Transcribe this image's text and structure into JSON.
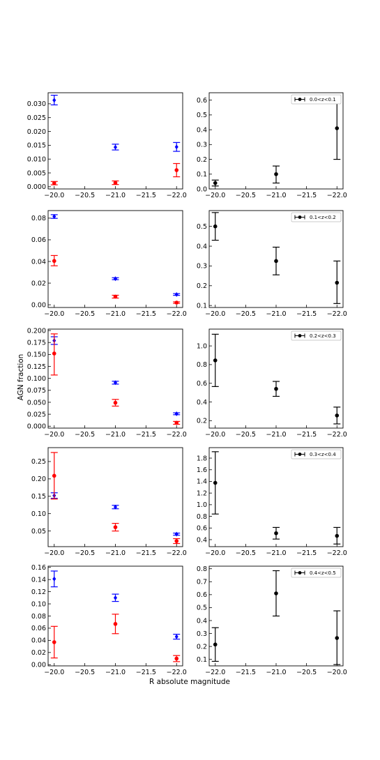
{
  "figure": {
    "shared_xlabel": "R absolute magnitude",
    "shared_ylabel": "AGN fraction"
  },
  "colors": {
    "blue": "#0000ff",
    "red": "#ff0000",
    "black": "#000000"
  },
  "chart_data": [
    {
      "id": "left-1",
      "type": "scatter",
      "xlim": [
        -19.9,
        -22.1
      ],
      "ylim": [
        -0.0008,
        0.034
      ],
      "xticks": [
        -20.0,
        -20.5,
        -21.0,
        -21.5,
        -22.0
      ],
      "xtick_labels": [
        "−20.0",
        "−20.5",
        "−21.0",
        "−21.5",
        "−22.0"
      ],
      "yticks": [
        0.0,
        0.005,
        0.01,
        0.015,
        0.02,
        0.025,
        0.03
      ],
      "ytick_labels": [
        "0.000",
        "0.005",
        "0.010",
        "0.015",
        "0.020",
        "0.025",
        "0.030"
      ],
      "series": [
        {
          "color": "blue",
          "marker": "diamond",
          "points": [
            {
              "x": -20.0,
              "y": 0.0313,
              "lo": 0.0296,
              "hi": 0.0331
            },
            {
              "x": -21.0,
              "y": 0.0143,
              "lo": 0.0133,
              "hi": 0.0154
            },
            {
              "x": -22.0,
              "y": 0.0144,
              "lo": 0.0128,
              "hi": 0.016
            }
          ]
        },
        {
          "color": "red",
          "marker": "circle",
          "points": [
            {
              "x": -20.0,
              "y": 0.0013,
              "lo": 0.0007,
              "hi": 0.0019
            },
            {
              "x": -21.0,
              "y": 0.0014,
              "lo": 0.0008,
              "hi": 0.0021
            },
            {
              "x": -22.0,
              "y": 0.006,
              "lo": 0.0036,
              "hi": 0.0084
            }
          ]
        }
      ]
    },
    {
      "id": "right-1",
      "type": "scatter",
      "xlim": [
        -19.9,
        -22.1
      ],
      "ylim": [
        0.0,
        0.65
      ],
      "xticks": [
        -20.0,
        -20.5,
        -21.0,
        -21.5,
        -22.0
      ],
      "xtick_labels": [
        "−20.0",
        "−20.5",
        "−21.0",
        "−21.5",
        "−22.0"
      ],
      "yticks": [
        0.0,
        0.1,
        0.2,
        0.3,
        0.4,
        0.5,
        0.6
      ],
      "ytick_labels": [
        "0.0",
        "0.1",
        "0.2",
        "0.3",
        "0.4",
        "0.5",
        "0.6"
      ],
      "legend": "0.0<z<0.1",
      "series": [
        {
          "color": "black",
          "marker": "circle",
          "points": [
            {
              "x": -20.0,
              "y": 0.04,
              "lo": 0.02,
              "hi": 0.06
            },
            {
              "x": -21.0,
              "y": 0.1,
              "lo": 0.04,
              "hi": 0.155
            },
            {
              "x": -22.0,
              "y": 0.41,
              "lo": 0.2,
              "hi": 0.62
            }
          ]
        }
      ]
    },
    {
      "id": "left-2",
      "type": "scatter",
      "xlim": [
        -19.9,
        -22.1
      ],
      "ylim": [
        -0.0025,
        0.087
      ],
      "xticks": [
        -20.0,
        -20.5,
        -21.0,
        -21.5,
        -22.0
      ],
      "xtick_labels": [
        "−20.0",
        "−20.5",
        "−21.0",
        "−21.5",
        "−22.0"
      ],
      "yticks": [
        0.0,
        0.02,
        0.04,
        0.06,
        0.08
      ],
      "ytick_labels": [
        "0.00",
        "0.02",
        "0.04",
        "0.06",
        "0.08"
      ],
      "series": [
        {
          "color": "blue",
          "marker": "diamond",
          "points": [
            {
              "x": -20.0,
              "y": 0.0815,
              "lo": 0.0798,
              "hi": 0.0832
            },
            {
              "x": -21.0,
              "y": 0.0241,
              "lo": 0.0232,
              "hi": 0.025
            },
            {
              "x": -22.0,
              "y": 0.0095,
              "lo": 0.0087,
              "hi": 0.0103
            }
          ]
        },
        {
          "color": "red",
          "marker": "circle",
          "points": [
            {
              "x": -20.0,
              "y": 0.0405,
              "lo": 0.036,
              "hi": 0.0455
            },
            {
              "x": -21.0,
              "y": 0.0075,
              "lo": 0.0062,
              "hi": 0.0088
            },
            {
              "x": -22.0,
              "y": 0.002,
              "lo": 0.0013,
              "hi": 0.0027
            }
          ]
        }
      ]
    },
    {
      "id": "right-2",
      "type": "scatter",
      "xlim": [
        -19.9,
        -22.1
      ],
      "ylim": [
        0.09,
        0.58
      ],
      "xticks": [
        -20.0,
        -20.5,
        -21.0,
        -21.5,
        -22.0
      ],
      "xtick_labels": [
        "−20.0",
        "−20.5",
        "−21.0",
        "−21.5",
        "−22.0"
      ],
      "yticks": [
        0.1,
        0.2,
        0.3,
        0.4,
        0.5
      ],
      "ytick_labels": [
        "0.1",
        "0.2",
        "0.3",
        "0.4",
        "0.5"
      ],
      "legend": "0.1<z<0.2",
      "series": [
        {
          "color": "black",
          "marker": "circle",
          "points": [
            {
              "x": -20.0,
              "y": 0.5,
              "lo": 0.43,
              "hi": 0.57
            },
            {
              "x": -21.0,
              "y": 0.325,
              "lo": 0.255,
              "hi": 0.395
            },
            {
              "x": -22.0,
              "y": 0.215,
              "lo": 0.11,
              "hi": 0.325
            }
          ]
        }
      ]
    },
    {
      "id": "left-3",
      "type": "scatter",
      "xlim": [
        -19.9,
        -22.1
      ],
      "ylim": [
        -0.004,
        0.203
      ],
      "xticks": [
        -20.0,
        -20.5,
        -21.0,
        -21.5,
        -22.0
      ],
      "xtick_labels": [
        "−20.0",
        "−20.5",
        "−21.0",
        "−21.5",
        "−22.0"
      ],
      "yticks": [
        0.0,
        0.025,
        0.05,
        0.075,
        0.1,
        0.125,
        0.15,
        0.175,
        0.2
      ],
      "ytick_labels": [
        "0.000",
        "0.025",
        "0.050",
        "0.075",
        "0.100",
        "0.125",
        "0.150",
        "0.175",
        "0.200"
      ],
      "ylabel": "AGN fraction",
      "series": [
        {
          "color": "blue",
          "marker": "diamond",
          "points": [
            {
              "x": -20.0,
              "y": 0.179,
              "lo": 0.171,
              "hi": 0.187
            },
            {
              "x": -21.0,
              "y": 0.091,
              "lo": 0.088,
              "hi": 0.094
            },
            {
              "x": -22.0,
              "y": 0.026,
              "lo": 0.024,
              "hi": 0.028
            }
          ]
        },
        {
          "color": "red",
          "marker": "circle",
          "points": [
            {
              "x": -20.0,
              "y": 0.152,
              "lo": 0.107,
              "hi": 0.193
            },
            {
              "x": -21.0,
              "y": 0.049,
              "lo": 0.042,
              "hi": 0.056
            },
            {
              "x": -22.0,
              "y": 0.007,
              "lo": 0.004,
              "hi": 0.01
            }
          ]
        }
      ]
    },
    {
      "id": "right-3",
      "type": "scatter",
      "xlim": [
        -19.9,
        -22.1
      ],
      "ylim": [
        0.12,
        1.18
      ],
      "xticks": [
        -20.0,
        -20.5,
        -21.0,
        -21.5,
        -22.0
      ],
      "xtick_labels": [
        "−20.0",
        "−20.5",
        "−21.0",
        "−21.5",
        "−22.0"
      ],
      "yticks": [
        0.2,
        0.4,
        0.6,
        0.8,
        1.0
      ],
      "ytick_labels": [
        "0.2",
        "0.4",
        "0.6",
        "0.8",
        "1.0"
      ],
      "legend": "0.2<z<0.3",
      "series": [
        {
          "color": "black",
          "marker": "circle",
          "points": [
            {
              "x": -20.0,
              "y": 0.845,
              "lo": 0.565,
              "hi": 1.125
            },
            {
              "x": -21.0,
              "y": 0.54,
              "lo": 0.46,
              "hi": 0.62
            },
            {
              "x": -22.0,
              "y": 0.255,
              "lo": 0.165,
              "hi": 0.345
            }
          ]
        }
      ]
    },
    {
      "id": "left-4",
      "type": "scatter",
      "xlim": [
        -19.9,
        -22.1
      ],
      "ylim": [
        0.005,
        0.29
      ],
      "xticks": [
        -20.0,
        -20.5,
        -21.0,
        -21.5,
        -22.0
      ],
      "xtick_labels": [
        "−20.0",
        "−20.5",
        "−21.0",
        "−21.5",
        "−22.0"
      ],
      "yticks": [
        0.05,
        0.1,
        0.15,
        0.2,
        0.25
      ],
      "ytick_labels": [
        "0.05",
        "0.10",
        "0.15",
        "0.20",
        "0.25"
      ],
      "series": [
        {
          "color": "blue",
          "marker": "diamond",
          "points": [
            {
              "x": -20.0,
              "y": 0.152,
              "lo": 0.144,
              "hi": 0.16
            },
            {
              "x": -21.0,
              "y": 0.119,
              "lo": 0.114,
              "hi": 0.124
            },
            {
              "x": -22.0,
              "y": 0.041,
              "lo": 0.038,
              "hi": 0.044
            }
          ]
        },
        {
          "color": "red",
          "marker": "circle",
          "points": [
            {
              "x": -20.0,
              "y": 0.209,
              "lo": 0.142,
              "hi": 0.276
            },
            {
              "x": -21.0,
              "y": 0.061,
              "lo": 0.05,
              "hi": 0.072
            },
            {
              "x": -22.0,
              "y": 0.021,
              "lo": 0.014,
              "hi": 0.028
            }
          ]
        }
      ]
    },
    {
      "id": "right-4",
      "type": "scatter",
      "xlim": [
        -19.9,
        -22.1
      ],
      "ylim": [
        0.28,
        1.98
      ],
      "xticks": [
        -20.0,
        -20.5,
        -21.0,
        -21.5,
        -22.0
      ],
      "xtick_labels": [
        "−20.0",
        "−20.5",
        "−21.0",
        "−21.5",
        "−22.0"
      ],
      "yticks": [
        0.4,
        0.6,
        0.8,
        1.0,
        1.2,
        1.4,
        1.6,
        1.8
      ],
      "ytick_labels": [
        "0.4",
        "0.6",
        "0.8",
        "1.0",
        "1.2",
        "1.4",
        "1.6",
        "1.8"
      ],
      "legend": "0.3<z<0.4",
      "series": [
        {
          "color": "black",
          "marker": "circle",
          "points": [
            {
              "x": -20.0,
              "y": 1.375,
              "lo": 0.84,
              "hi": 1.91
            },
            {
              "x": -21.0,
              "y": 0.51,
              "lo": 0.41,
              "hi": 0.61
            },
            {
              "x": -22.0,
              "y": 0.465,
              "lo": 0.325,
              "hi": 0.61
            }
          ]
        }
      ]
    },
    {
      "id": "left-5",
      "type": "scatter",
      "xlim": [
        -19.9,
        -22.1
      ],
      "ylim": [
        -0.002,
        0.162
      ],
      "xticks": [
        -20.0,
        -20.5,
        -21.0,
        -21.5,
        -22.0
      ],
      "xtick_labels": [
        "−20.0",
        "−20.5",
        "−21.0",
        "−21.5",
        "−22.0"
      ],
      "yticks": [
        0.0,
        0.02,
        0.04,
        0.06,
        0.08,
        0.1,
        0.12,
        0.14,
        0.16
      ],
      "ytick_labels": [
        "0.00",
        "0.02",
        "0.04",
        "0.06",
        "0.08",
        "0.10",
        "0.12",
        "0.14",
        "0.16"
      ],
      "series": [
        {
          "color": "blue",
          "marker": "diamond",
          "points": [
            {
              "x": -20.0,
              "y": 0.141,
              "lo": 0.128,
              "hi": 0.154
            },
            {
              "x": -21.0,
              "y": 0.11,
              "lo": 0.104,
              "hi": 0.116
            },
            {
              "x": -22.0,
              "y": 0.046,
              "lo": 0.042,
              "hi": 0.05
            }
          ]
        },
        {
          "color": "red",
          "marker": "circle",
          "points": [
            {
              "x": -20.0,
              "y": 0.037,
              "lo": 0.011,
              "hi": 0.063
            },
            {
              "x": -21.0,
              "y": 0.067,
              "lo": 0.051,
              "hi": 0.083
            },
            {
              "x": -22.0,
              "y": 0.01,
              "lo": 0.005,
              "hi": 0.015
            }
          ]
        }
      ]
    },
    {
      "id": "right-5",
      "type": "scatter",
      "xlim": [
        -22.1,
        -19.9
      ],
      "ylim": [
        0.05,
        0.82
      ],
      "xticks": [
        -22.0,
        -21.5,
        -21.0,
        -20.5,
        -20.0
      ],
      "xtick_labels": [
        "−22.0",
        "−21.5",
        "−21.0",
        "−20.5",
        "−20.0"
      ],
      "yticks": [
        0.1,
        0.2,
        0.3,
        0.4,
        0.5,
        0.6,
        0.7,
        0.8
      ],
      "ytick_labels": [
        "0.1",
        "0.2",
        "0.3",
        "0.4",
        "0.5",
        "0.6",
        "0.7",
        "0.8"
      ],
      "legend": "0.4<z<0.5",
      "series": [
        {
          "color": "black",
          "marker": "circle",
          "points": [
            {
              "x": -22.0,
              "y": 0.215,
              "lo": 0.085,
              "hi": 0.345
            },
            {
              "x": -21.0,
              "y": 0.61,
              "lo": 0.435,
              "hi": 0.785
            },
            {
              "x": -20.0,
              "y": 0.265,
              "lo": 0.06,
              "hi": 0.475
            }
          ]
        }
      ]
    }
  ]
}
